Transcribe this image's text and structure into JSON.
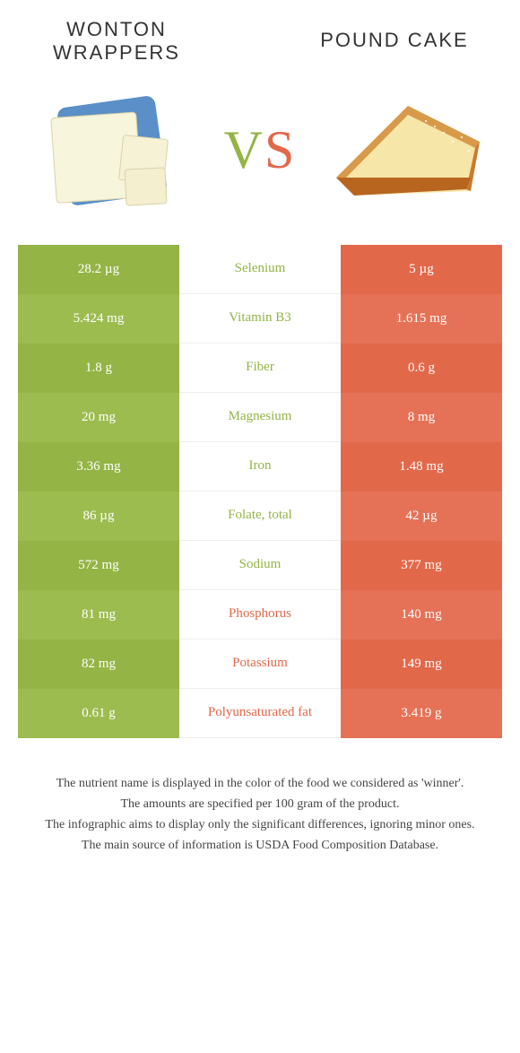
{
  "titles": {
    "left": "Wonton Wrappers",
    "right": "Pound Cake",
    "vs_v": "V",
    "vs_s": "S"
  },
  "colors": {
    "left_base": "#94b446",
    "left_alt": "#9dbc4f",
    "right_base": "#e2684a",
    "right_alt": "#e57257",
    "mid_text_left": "#94b446",
    "mid_text_right": "#e2684a"
  },
  "rows": [
    {
      "left": "28.2 µg",
      "label": "Selenium",
      "right": "5 µg",
      "winner": "left"
    },
    {
      "left": "5.424 mg",
      "label": "Vitamin B3",
      "right": "1.615 mg",
      "winner": "left"
    },
    {
      "left": "1.8 g",
      "label": "Fiber",
      "right": "0.6 g",
      "winner": "left"
    },
    {
      "left": "20 mg",
      "label": "Magnesium",
      "right": "8 mg",
      "winner": "left"
    },
    {
      "left": "3.36 mg",
      "label": "Iron",
      "right": "1.48 mg",
      "winner": "left"
    },
    {
      "left": "86 µg",
      "label": "Folate, total",
      "right": "42 µg",
      "winner": "left"
    },
    {
      "left": "572 mg",
      "label": "Sodium",
      "right": "377 mg",
      "winner": "left"
    },
    {
      "left": "81 mg",
      "label": "Phosphorus",
      "right": "140 mg",
      "winner": "right"
    },
    {
      "left": "82 mg",
      "label": "Potassium",
      "right": "149 mg",
      "winner": "right"
    },
    {
      "left": "0.61 g",
      "label": "Polyunsaturated fat",
      "right": "3.419 g",
      "winner": "right"
    }
  ],
  "footer": [
    "The nutrient name is displayed in the color of the food we considered as 'winner'.",
    "The amounts are specified per 100 gram of the product.",
    "The infographic aims to display only the significant differences, ignoring minor ones.",
    "The main source of information is USDA Food Composition Database."
  ]
}
